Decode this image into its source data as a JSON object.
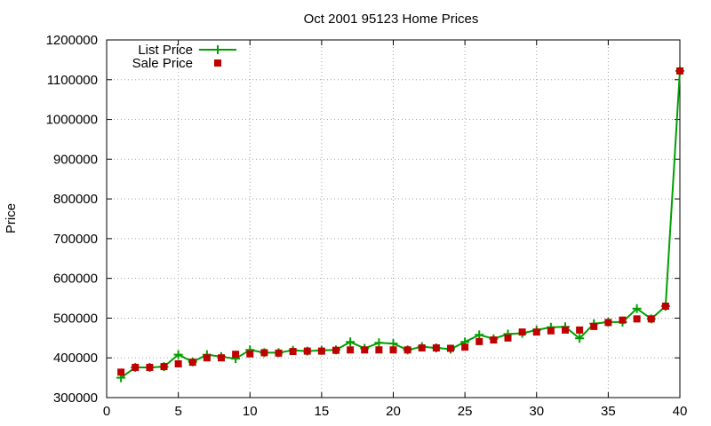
{
  "colors": {
    "list": "#00a000",
    "sale": "#c00000",
    "grid": "#a0a0a0",
    "axis": "#000000"
  },
  "chart_data": {
    "type": "line",
    "title": "Oct 2001 95123 Home Prices",
    "xlabel": "",
    "ylabel": "Price",
    "xlim": [
      0,
      40
    ],
    "ylim": [
      300000,
      1200000
    ],
    "x_ticks": [
      0,
      5,
      10,
      15,
      20,
      25,
      30,
      35,
      40
    ],
    "y_ticks": [
      300000,
      400000,
      500000,
      600000,
      700000,
      800000,
      900000,
      1000000,
      1100000,
      1200000
    ],
    "grid": true,
    "legend_position": "top-left",
    "x": [
      1,
      2,
      3,
      4,
      5,
      6,
      7,
      8,
      9,
      10,
      11,
      12,
      13,
      14,
      15,
      16,
      17,
      18,
      19,
      20,
      21,
      22,
      23,
      24,
      25,
      26,
      27,
      28,
      29,
      30,
      31,
      32,
      33,
      34,
      35,
      36,
      37,
      38,
      39,
      40
    ],
    "series": [
      {
        "name": "List Price",
        "style": "line-plus",
        "values": [
          350000,
          376000,
          376000,
          378000,
          408000,
          390000,
          408000,
          403000,
          398000,
          420000,
          413000,
          413000,
          419000,
          417000,
          419000,
          420000,
          440000,
          424000,
          438000,
          436000,
          420000,
          428000,
          425000,
          422000,
          440000,
          458000,
          448000,
          460000,
          462000,
          470000,
          477000,
          478000,
          449000,
          486000,
          490000,
          490000,
          524000,
          498000,
          530000,
          1122000
        ]
      },
      {
        "name": "Sale Price",
        "style": "square",
        "values": [
          364000,
          376000,
          376000,
          378000,
          385000,
          389000,
          400000,
          400000,
          409000,
          410000,
          413000,
          412000,
          416000,
          417000,
          417000,
          419000,
          420000,
          420000,
          420000,
          420000,
          420000,
          425000,
          425000,
          424000,
          427000,
          441000,
          445000,
          450000,
          465000,
          465000,
          468000,
          470000,
          470000,
          479000,
          489000,
          495000,
          498000,
          498000,
          530000,
          1122000
        ]
      }
    ]
  }
}
